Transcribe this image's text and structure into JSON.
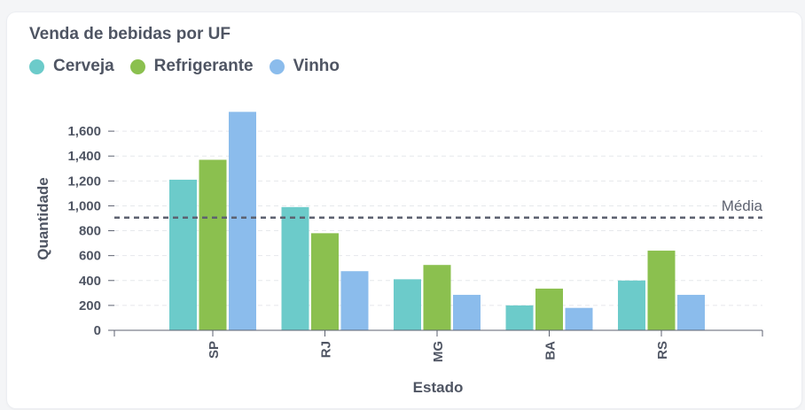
{
  "chart_data": {
    "type": "bar",
    "title": "Venda de bebidas por UF",
    "xlabel": "Estado",
    "ylabel": "Quantidade",
    "categories": [
      "SP",
      "RJ",
      "MG",
      "BA",
      "RS"
    ],
    "series": [
      {
        "name": "Cerveja",
        "color": "#6ccbca",
        "values": [
          1210,
          990,
          410,
          200,
          400
        ]
      },
      {
        "name": "Refrigerante",
        "color": "#8bc04f",
        "values": [
          1370,
          780,
          525,
          335,
          640
        ]
      },
      {
        "name": "Vinho",
        "color": "#8bbcec",
        "values": [
          1755,
          475,
          285,
          180,
          285
        ]
      }
    ],
    "ylim": [
      0,
      1800
    ],
    "yticks": [
      0,
      200,
      400,
      600,
      800,
      1000,
      1200,
      1400,
      1600
    ],
    "ytick_labels": [
      "0",
      "200",
      "400",
      "600",
      "800",
      "1,000",
      "1,200",
      "1,400",
      "1,600"
    ],
    "reference_line": {
      "label": "Média",
      "value": 905
    },
    "grid": true,
    "legend_position": "top-left"
  }
}
